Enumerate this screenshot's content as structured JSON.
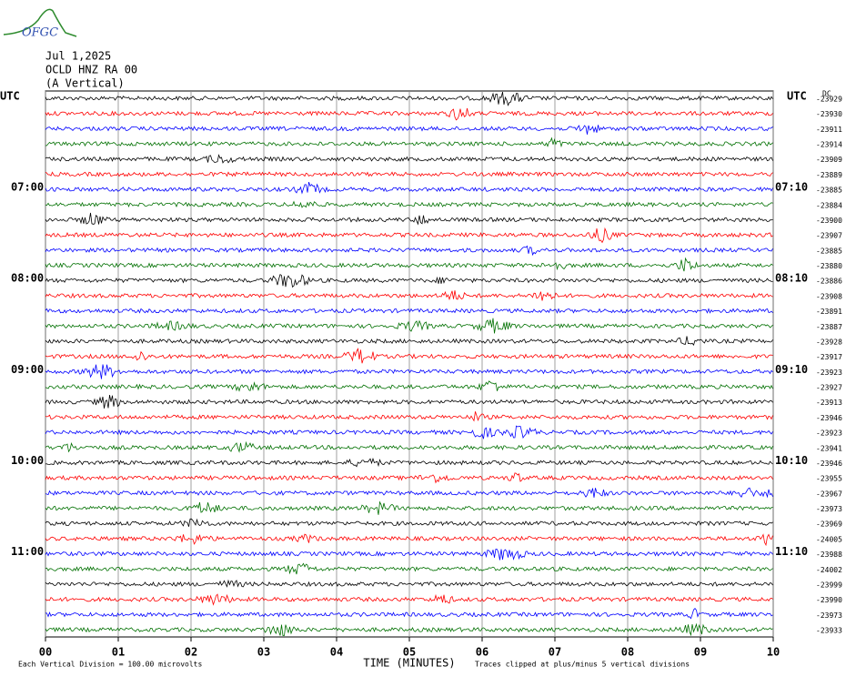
{
  "logo": "OFGC",
  "header": {
    "date": "Jul 1,2025",
    "station": "OCLD HNZ RA 00",
    "component": "(A Vertical)"
  },
  "left_labels": [
    "UTC",
    "07:00",
    "08:00",
    "09:00",
    "10:00",
    "11:00"
  ],
  "right_labels": [
    "UTC",
    "07:10",
    "08:10",
    "09:10",
    "10:10",
    "11:10"
  ],
  "dc_label": "DC",
  "trace_colors": [
    "#000000",
    "#ff0000",
    "#0000ff",
    "#007000"
  ],
  "trace_offsets": [
    -23929,
    -23930,
    -23911,
    -23914,
    -23909,
    -23889,
    -23885,
    -23884,
    -23900,
    -23907,
    -23885,
    -23880,
    -23886,
    -23908,
    -23891,
    -23887,
    -23928,
    -23917,
    -23923,
    -23927,
    -23913,
    -23946,
    -23923,
    -23941,
    -23946,
    -23955,
    -23967,
    -23973,
    -23969,
    -24005,
    -23988,
    -24002,
    -23999,
    -23990,
    -23973,
    -23933
  ],
  "x_axis": {
    "ticks": [
      "00",
      "01",
      "02",
      "03",
      "04",
      "05",
      "06",
      "07",
      "08",
      "09",
      "10"
    ],
    "label": "TIME (MINUTES)"
  },
  "footer": {
    "scale": "Each Vertical Division =  100.00 microvolts",
    "clip": "Traces clipped at plus/minus 5 vertical divisions"
  }
}
